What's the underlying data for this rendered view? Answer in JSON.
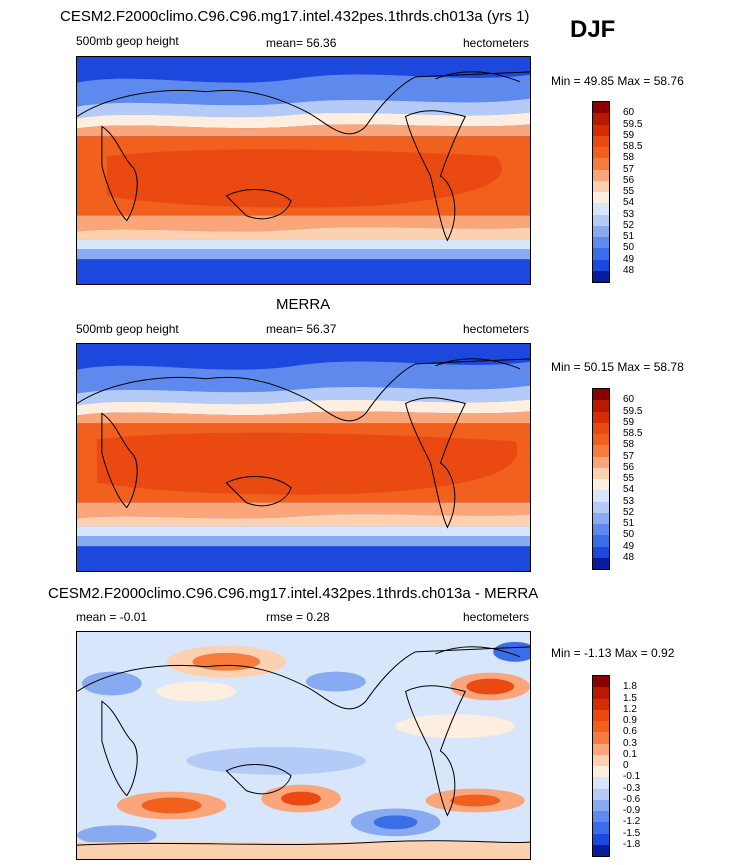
{
  "season": "DJF",
  "panels": [
    {
      "title": "CESM2.F2000climo.C96.C96.mg17.intel.432pes.1thrds.ch013a (yrs 1)",
      "left_text": "500mb geop height",
      "center_text": "mean=  56.36",
      "right_text": "hectometers",
      "minmax": "Min =  49.85 Max =  58.76",
      "levels": [
        "60",
        "59.5",
        "59",
        "58.5",
        "58",
        "57",
        "56",
        "55",
        "54",
        "53",
        "52",
        "51",
        "50",
        "49",
        "48"
      ],
      "colors": [
        "#8a0000",
        "#b81a00",
        "#d62d00",
        "#ea4a12",
        "#f2601d",
        "#f77b3d",
        "#fba67a",
        "#fdd0b0",
        "#fdeee0",
        "#d8e6fb",
        "#b3cbf6",
        "#88aaf0",
        "#5e8aee",
        "#3a6de8",
        "#1d48dd",
        "#0a1c9e"
      ]
    },
    {
      "title": "MERRA",
      "left_text": "500mb geop height",
      "center_text": "mean=  56.37",
      "right_text": "hectometers",
      "minmax": "Min =  50.15 Max =  58.78",
      "levels": [
        "60",
        "59.5",
        "59",
        "58.5",
        "58",
        "57",
        "56",
        "55",
        "54",
        "53",
        "52",
        "51",
        "50",
        "49",
        "48"
      ],
      "colors": [
        "#8a0000",
        "#b81a00",
        "#d62d00",
        "#ea4a12",
        "#f2601d",
        "#f77b3d",
        "#fba67a",
        "#fdd0b0",
        "#fdeee0",
        "#d8e6fb",
        "#b3cbf6",
        "#88aaf0",
        "#5e8aee",
        "#3a6de8",
        "#1d48dd",
        "#0a1c9e"
      ]
    },
    {
      "title": "CESM2.F2000climo.C96.C96.mg17.intel.432pes.1thrds.ch013a - MERRA",
      "left_text": "mean =  -0.01",
      "center_text": "rmse =   0.28",
      "right_text": "hectometers",
      "minmax": "Min =  -1.13 Max =   0.92",
      "levels": [
        "1.8",
        "1.5",
        "1.2",
        "0.9",
        "0.6",
        "0.3",
        "0.1",
        "0",
        "-0.1",
        "-0.3",
        "-0.6",
        "-0.9",
        "-1.2",
        "-1.5",
        "-1.8"
      ],
      "colors": [
        "#8a0000",
        "#b81a00",
        "#d62d00",
        "#ea4a12",
        "#f2601d",
        "#f77b3d",
        "#fba67a",
        "#fdd0b0",
        "#fdeee0",
        "#d8e6fb",
        "#b3cbf6",
        "#88aaf0",
        "#5e8aee",
        "#3a6de8",
        "#1d48dd",
        "#0a1c9e"
      ]
    }
  ]
}
